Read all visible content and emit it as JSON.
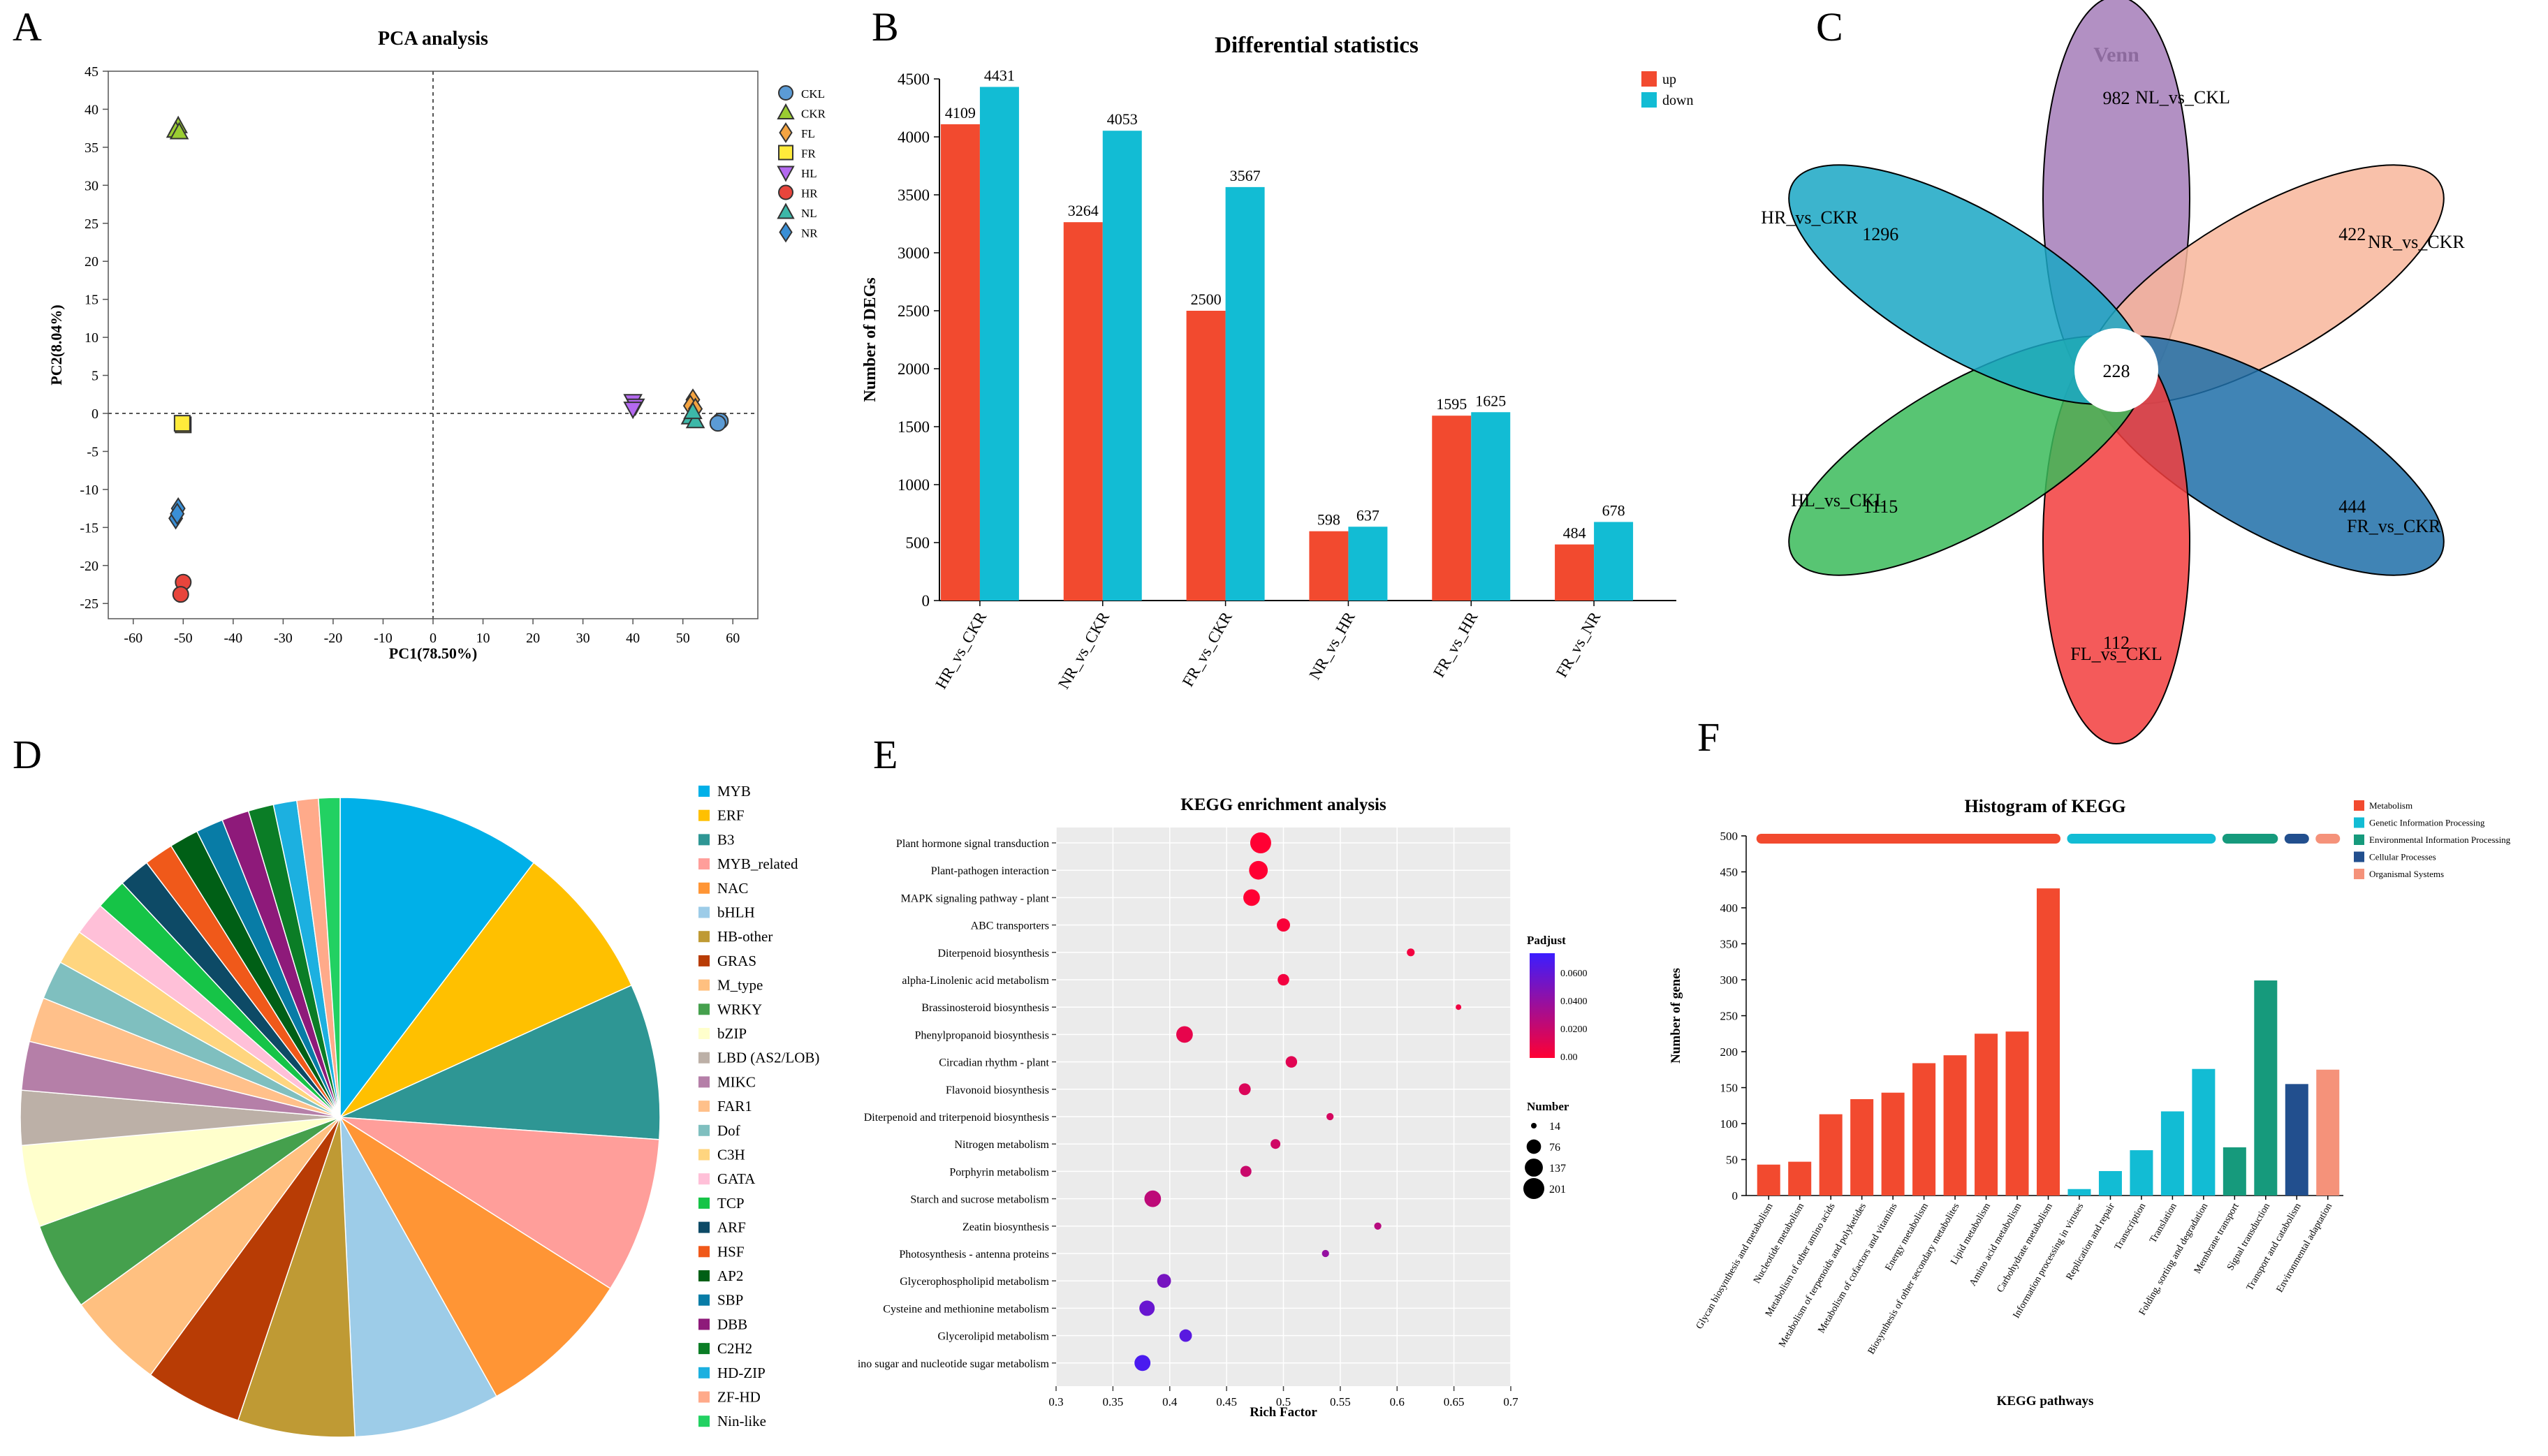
{
  "panel_letters": [
    "A",
    "B",
    "C",
    "D",
    "E",
    "F"
  ],
  "chart_data": [
    {
      "panel": "A",
      "type": "scatter",
      "title": "PCA analysis",
      "xlabel": "PC1(78.50%)",
      "ylabel": "PC2(8.04%)",
      "xlim": [
        -65,
        65
      ],
      "ylim": [
        -27,
        45
      ],
      "xticks": [
        -60,
        -50,
        -40,
        -30,
        -20,
        -10,
        0,
        10,
        20,
        30,
        40,
        50,
        60
      ],
      "yticks": [
        -25,
        -20,
        -15,
        -10,
        -5,
        0,
        5,
        10,
        15,
        20,
        25,
        30,
        35,
        40,
        45
      ],
      "series": [
        {
          "name": "CKL",
          "marker": "circle",
          "color": "#5b9bd5",
          "points": [
            [
              57.5,
              -1.0
            ],
            [
              57,
              -1.3
            ]
          ]
        },
        {
          "name": "CKR",
          "marker": "triangle-up",
          "color": "#9acd32",
          "points": [
            [
              -51,
              37.8
            ],
            [
              -51.5,
              37.2
            ],
            [
              -50.8,
              37.0
            ]
          ]
        },
        {
          "name": "FL",
          "marker": "diamond",
          "color": "#f4a442",
          "points": [
            [
              52,
              1.8
            ],
            [
              51.5,
              1.0
            ],
            [
              52.5,
              0.6
            ]
          ]
        },
        {
          "name": "FR",
          "marker": "square",
          "color": "#ffeb3b",
          "points": [
            [
              -50,
              -1.5
            ],
            [
              -50.2,
              -1.3
            ]
          ]
        },
        {
          "name": "HL",
          "marker": "triangle-down",
          "color": "#b469f0",
          "points": [
            [
              40,
              1.6
            ],
            [
              40.5,
              1.0
            ],
            [
              40,
              0.6
            ]
          ]
        },
        {
          "name": "HR",
          "marker": "circle",
          "color": "#e8453c",
          "points": [
            [
              -50,
              -22.2
            ],
            [
              -50.5,
              -23.8
            ]
          ]
        },
        {
          "name": "NL",
          "marker": "triangle-up",
          "color": "#3cb8a8",
          "points": [
            [
              51.5,
              -0.5
            ],
            [
              52.5,
              -1.0
            ],
            [
              52,
              0.2
            ]
          ]
        },
        {
          "name": "NR",
          "marker": "diamond",
          "color": "#3a8fd6",
          "points": [
            [
              -51,
              -12.5
            ],
            [
              -51.5,
              -13.8
            ],
            [
              -51.2,
              -13.2
            ]
          ]
        }
      ]
    },
    {
      "panel": "B",
      "type": "bar",
      "title": "Differential statistics",
      "xlabel": "",
      "ylabel": "Number of DEGs",
      "ylim": [
        0,
        4500
      ],
      "yticks": [
        0,
        500,
        1000,
        1500,
        2000,
        2500,
        3000,
        3500,
        4000,
        4500
      ],
      "categories": [
        "HR_vs_CKR",
        "NR_vs_CKR",
        "FR_vs_CKR",
        "NR_vs_HR",
        "FR_vs_HR",
        "FR_vs_NR"
      ],
      "series": [
        {
          "name": "up",
          "color": "#f24a2f",
          "values": [
            4109,
            3264,
            2500,
            598,
            1595,
            484
          ]
        },
        {
          "name": "down",
          "color": "#12bcd4",
          "values": [
            4431,
            4053,
            3567,
            637,
            1625,
            678
          ]
        }
      ]
    },
    {
      "panel": "C",
      "type": "venn",
      "title": "Venn",
      "center_value": "228",
      "sets": [
        {
          "name": "NL_vs_CKL",
          "unique": "982",
          "color": "#a57cb8"
        },
        {
          "name": "NR_vs_CKR",
          "unique": "422",
          "color": "#f8b69b"
        },
        {
          "name": "FR_vs_CKR",
          "unique": "444",
          "color": "#1f6ea8"
        },
        {
          "name": "FL_vs_CKL",
          "unique": "112",
          "color": "#f23d3d"
        },
        {
          "name": "HL_vs_CKL",
          "unique": "1115",
          "color": "#3bbb5a"
        },
        {
          "name": "HR_vs_CKR",
          "unique": "1296",
          "color": "#1aa7c4"
        }
      ]
    },
    {
      "panel": "D",
      "type": "pie",
      "title": "",
      "slices": [
        {
          "label": "MYB",
          "value": 10.5,
          "color": "#00b0e8"
        },
        {
          "label": "ERF",
          "value": 8.0,
          "color": "#ffc000"
        },
        {
          "label": "B3",
          "value": 8.0,
          "color": "#2e9694"
        },
        {
          "label": "MYB_related",
          "value": 8.0,
          "color": "#ff9e9a"
        },
        {
          "label": "NAC",
          "value": 8.0,
          "color": "#ff9535"
        },
        {
          "label": "bHLH",
          "value": 7.5,
          "color": "#9dcce8"
        },
        {
          "label": "HB-other",
          "value": 6.0,
          "color": "#bf9a34"
        },
        {
          "label": "GRAS",
          "value": 5.0,
          "color": "#b83c05"
        },
        {
          "label": "M_type",
          "value": 5.0,
          "color": "#ffc080"
        },
        {
          "label": "WRKY",
          "value": 4.5,
          "color": "#45a04d"
        },
        {
          "label": "bZIP",
          "value": 4.2,
          "color": "#ffffcc"
        },
        {
          "label": "LBD (AS2/LOB)",
          "value": 2.8,
          "color": "#bcb0a7"
        },
        {
          "label": "MIKC",
          "value": 2.5,
          "color": "#b57fa8"
        },
        {
          "label": "FAR1",
          "value": 2.3,
          "color": "#ffc08a"
        },
        {
          "label": "Dof",
          "value": 2.0,
          "color": "#7fbfbf"
        },
        {
          "label": "C3H",
          "value": 1.8,
          "color": "#ffd57f"
        },
        {
          "label": "GATA",
          "value": 1.7,
          "color": "#ffc0d8"
        },
        {
          "label": "TCP",
          "value": 1.6,
          "color": "#16c447"
        },
        {
          "label": "ARF",
          "value": 1.6,
          "color": "#0d4a66"
        },
        {
          "label": "HSF",
          "value": 1.5,
          "color": "#f0591a"
        },
        {
          "label": "AP2",
          "value": 1.5,
          "color": "#005f16"
        },
        {
          "label": "SBP",
          "value": 1.4,
          "color": "#087ca6"
        },
        {
          "label": "DBB",
          "value": 1.4,
          "color": "#8e1a7a"
        },
        {
          "label": "C2H2",
          "value": 1.3,
          "color": "#0b7d26"
        },
        {
          "label": "HD-ZIP",
          "value": 1.2,
          "color": "#1cb0e0"
        },
        {
          "label": "ZF-HD",
          "value": 1.1,
          "color": "#ffaa8a"
        },
        {
          "label": "Nin-like",
          "value": 1.1,
          "color": "#22d162"
        }
      ]
    },
    {
      "panel": "E",
      "type": "scatter",
      "title": "KEGG enrichment analysis",
      "xlabel": "Rich Factor",
      "ylabel": "",
      "xlim": [
        0.3,
        0.7
      ],
      "xticks": [
        "0.3",
        "0.35",
        "0.4",
        "0.45",
        "0.5",
        "0.55",
        "0.6",
        "0.65",
        "0.7"
      ],
      "terms": [
        {
          "name": "Plant hormone signal transduction",
          "rich": 0.48,
          "number": 201,
          "padjust": 0.0
        },
        {
          "name": "Plant-pathogen interaction",
          "rich": 0.478,
          "number": 150,
          "padjust": 0.0
        },
        {
          "name": "MAPK signaling pathway - plant",
          "rich": 0.472,
          "number": 110,
          "padjust": 0.0
        },
        {
          "name": "ABC transporters",
          "rich": 0.5,
          "number": 60,
          "padjust": 0.002
        },
        {
          "name": "Diterpenoid biosynthesis",
          "rich": 0.612,
          "number": 18,
          "padjust": 0.004
        },
        {
          "name": "alpha-Linolenic acid metabolism",
          "rich": 0.5,
          "number": 42,
          "padjust": 0.004
        },
        {
          "name": "Brassinosteroid biosynthesis",
          "rich": 0.654,
          "number": 14,
          "padjust": 0.005
        },
        {
          "name": "Phenylpropanoid biosynthesis",
          "rich": 0.413,
          "number": 110,
          "padjust": 0.008
        },
        {
          "name": "Circadian rhythm - plant",
          "rich": 0.507,
          "number": 42,
          "padjust": 0.01
        },
        {
          "name": "Flavonoid biosynthesis",
          "rich": 0.466,
          "number": 45,
          "padjust": 0.012
        },
        {
          "name": "Diterpenoid and triterpenoid biosynthesis",
          "rich": 0.541,
          "number": 16,
          "padjust": 0.014
        },
        {
          "name": "Nitrogen metabolism",
          "rich": 0.493,
          "number": 28,
          "padjust": 0.016
        },
        {
          "name": "Porphyrin metabolism",
          "rich": 0.467,
          "number": 38,
          "padjust": 0.018
        },
        {
          "name": "Starch and sucrose metabolism",
          "rich": 0.385,
          "number": 110,
          "padjust": 0.022
        },
        {
          "name": "Zeatin biosynthesis",
          "rich": 0.583,
          "number": 16,
          "padjust": 0.024
        },
        {
          "name": "Photosynthesis - antenna proteins",
          "rich": 0.537,
          "number": 16,
          "padjust": 0.035
        },
        {
          "name": "Glycerophospholipid metabolism",
          "rich": 0.395,
          "number": 68,
          "padjust": 0.045
        },
        {
          "name": "Cysteine and methionine metabolism",
          "rich": 0.38,
          "number": 90,
          "padjust": 0.05
        },
        {
          "name": "Glycerolipid metabolism",
          "rich": 0.414,
          "number": 52,
          "padjust": 0.055
        },
        {
          "name": "Amino sugar and nucleotide sugar metabolism",
          "rich": 0.376,
          "number": 100,
          "padjust": 0.06
        }
      ],
      "padjust_legend": {
        "title": "Padjust",
        "ticks": [
          "0.0600",
          "0.0400",
          "0.0200",
          "0.00"
        ],
        "low_color": "#ff0033",
        "high_color": "#3b1dff"
      },
      "number_legend": {
        "title": "Number",
        "values": [
          "14",
          "76",
          "137",
          "201"
        ]
      }
    },
    {
      "panel": "F",
      "type": "bar",
      "title": "Histogram of KEGG",
      "xlabel": "KEGG pathways",
      "ylabel": "Number of genes",
      "ylim": [
        0,
        500
      ],
      "yticks": [
        0,
        50,
        100,
        150,
        200,
        250,
        300,
        350,
        400,
        450,
        500
      ],
      "groups": [
        {
          "name": "Metabolism",
          "color": "#f24a2f"
        },
        {
          "name": "Genetic Information Processing",
          "color": "#12bcd4"
        },
        {
          "name": "Environmental Information Processing",
          "color": "#169a7c"
        },
        {
          "name": "Cellular Processes",
          "color": "#224f8e"
        },
        {
          "name": "Organismal Systems",
          "color": "#f5927a"
        }
      ],
      "bars": [
        {
          "label": "Glycan biosynthesis and metabolism",
          "value": 43,
          "group": 0
        },
        {
          "label": "Nucleotide metabolism",
          "value": 47,
          "group": 0
        },
        {
          "label": "Metabolism of other amino acids",
          "value": 113,
          "group": 0
        },
        {
          "label": "Metabolism of terpenoids and polyketides",
          "value": 134,
          "group": 0
        },
        {
          "label": "Metabolism of cofactors and vitamins",
          "value": 143,
          "group": 0
        },
        {
          "label": "Energy metabolism",
          "value": 184,
          "group": 0
        },
        {
          "label": "Biosynthesis of other secondary metabolites",
          "value": 195,
          "group": 0
        },
        {
          "label": "Lipid metabolism",
          "value": 225,
          "group": 0
        },
        {
          "label": "Amino acid metabolism",
          "value": 228,
          "group": 0
        },
        {
          "label": "Carbohydrate metabolism",
          "value": 427,
          "group": 0
        },
        {
          "label": "Information processing in viruses",
          "value": 9,
          "group": 1
        },
        {
          "label": "Replication and repair",
          "value": 34,
          "group": 1
        },
        {
          "label": "Transcription",
          "value": 63,
          "group": 1
        },
        {
          "label": "Translation",
          "value": 117,
          "group": 1
        },
        {
          "label": "Folding, sorting and degradation",
          "value": 176,
          "group": 1
        },
        {
          "label": "Membrane transport",
          "value": 67,
          "group": 2
        },
        {
          "label": "Signal transduction",
          "value": 299,
          "group": 2
        },
        {
          "label": "Transport and catabolism",
          "value": 155,
          "group": 3
        },
        {
          "label": "Environmental adaptation",
          "value": 175,
          "group": 4
        }
      ]
    }
  ]
}
